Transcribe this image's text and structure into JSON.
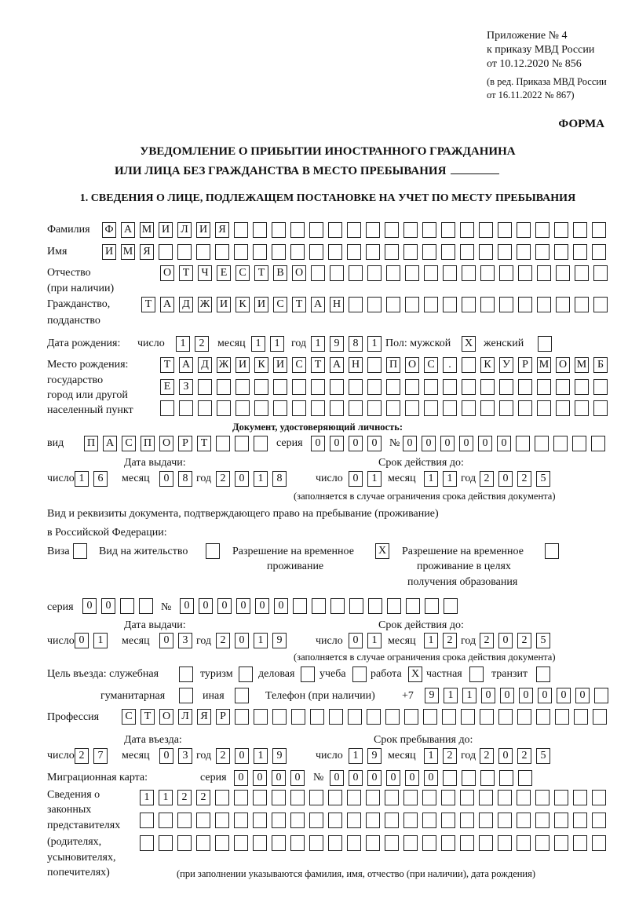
{
  "header": {
    "appendix": [
      "Приложение № 4",
      "к приказу МВД России",
      "от 10.12.2020 № 856"
    ],
    "edition": [
      "(в ред. Приказа МВД России",
      "от 16.11.2022 № 867)"
    ],
    "form_label": "ФОРМА",
    "title_line1": "УВЕДОМЛЕНИЕ О ПРИБЫТИИ ИНОСТРАННОГО ГРАЖДАНИНА",
    "title_line2": "ИЛИ ЛИЦА БЕЗ ГРАЖДАНСТВА В МЕСТО ПРЕБЫВАНИЯ",
    "section1": "1. СВЕДЕНИЯ О ЛИЦЕ, ПОДЛЕЖАЩЕМ ПОСТАНОВКЕ НА УЧЕТ ПО МЕСТУ ПРЕБЫВАНИЯ"
  },
  "labels": {
    "surname": "Фамилия",
    "name": "Имя",
    "patronymic": "Отчество",
    "patronymic2": "(при наличии)",
    "citizenship": "Гражданство,",
    "citizenship2": "подданство",
    "birth_date": "Дата рождения:",
    "day": "число",
    "month": "месяц",
    "year": "год",
    "sex": "Пол: мужской",
    "female": "женский",
    "birthplace": "Место рождения:",
    "birthplace2": "государство",
    "birthplace3": "город или другой",
    "birthplace4": "населенный пункт",
    "id_doc": "Документ, удостоверяющий личность:",
    "kind": "вид",
    "series": "серия",
    "number": "№",
    "issue_date": "Дата выдачи:",
    "valid_until": "Срок действия до:",
    "valid_note": "(заполняется в случае ограничения срока действия документа)",
    "stay_doc1": "Вид и реквизиты документа, подтверждающего право на пребывание (проживание)",
    "stay_doc2": "в Российской Федерации:",
    "visa": "Виза",
    "residence": "Вид на жительство",
    "trp1": "Разрешение на временное",
    "trp2": "проживание",
    "trpe1": "Разрешение на временное",
    "trpe2": "проживание в целях",
    "trpe3": "получения образования",
    "purpose": "Цель въезда: служебная",
    "tourism": "туризм",
    "business": "деловая",
    "study": "учеба",
    "work": "работа",
    "private": "частная",
    "transit": "транзит",
    "humanitarian": "гуманитарная",
    "other": "иная",
    "phone": "Телефон (при наличии)",
    "phone_prefix": "+7",
    "profession": "Профессия",
    "entry_date": "Дата въезда:",
    "stay_until": "Срок пребывания до:",
    "migration_card": "Миграционная карта:",
    "reps": [
      "Сведения о",
      "законных",
      "представителях",
      "(родителях,",
      "усыновителях,",
      "попечителях)"
    ],
    "reps_note": "(при заполнении указываются фамилия, имя, отчество (при наличии), дата рождения)"
  },
  "values": {
    "surname": "ФАМИЛИЯ",
    "name": "ИМЯ",
    "patronymic": "ОТЧЕСТВО",
    "citizenship": "ТАДЖИКИСТАН",
    "birth_day": "12",
    "birth_month": "11",
    "birth_year": "1981",
    "male": "X",
    "female": "",
    "birthplace1": "ТАДЖИКИСТАН ПОС. КУРМОМБ",
    "birthplace2": "ЕЗ",
    "birthplace3": "",
    "id_kind": "ПАСПОРТ",
    "id_series": "0000",
    "id_number": "000000",
    "id_issue_day": "16",
    "id_issue_month": "08",
    "id_issue_year": "2018",
    "id_valid_day": "01",
    "id_valid_month": "11",
    "id_valid_year": "2025",
    "visa": "",
    "residence": "",
    "trp": "X",
    "trpe": "",
    "stay_series": "00",
    "stay_number": "000000",
    "stay_issue_day": "01",
    "stay_issue_month": "03",
    "stay_issue_year": "2019",
    "stay_valid_day": "01",
    "stay_valid_month": "12",
    "stay_valid_year": "2025",
    "p_service": "",
    "p_tourism": "",
    "p_business": "",
    "p_study": "",
    "p_work": "X",
    "p_private": "",
    "p_transit": "",
    "p_humanitarian": "",
    "p_other": "",
    "phone": "911000000",
    "profession": "СТОЛЯР",
    "entry_day": "27",
    "entry_month": "03",
    "entry_year": "2019",
    "stay_day": "19",
    "stay_month": "12",
    "stay_year": "2025",
    "mc_series": "0000",
    "mc_number": "000000",
    "reps1": "1122",
    "reps2": "",
    "reps3": ""
  }
}
